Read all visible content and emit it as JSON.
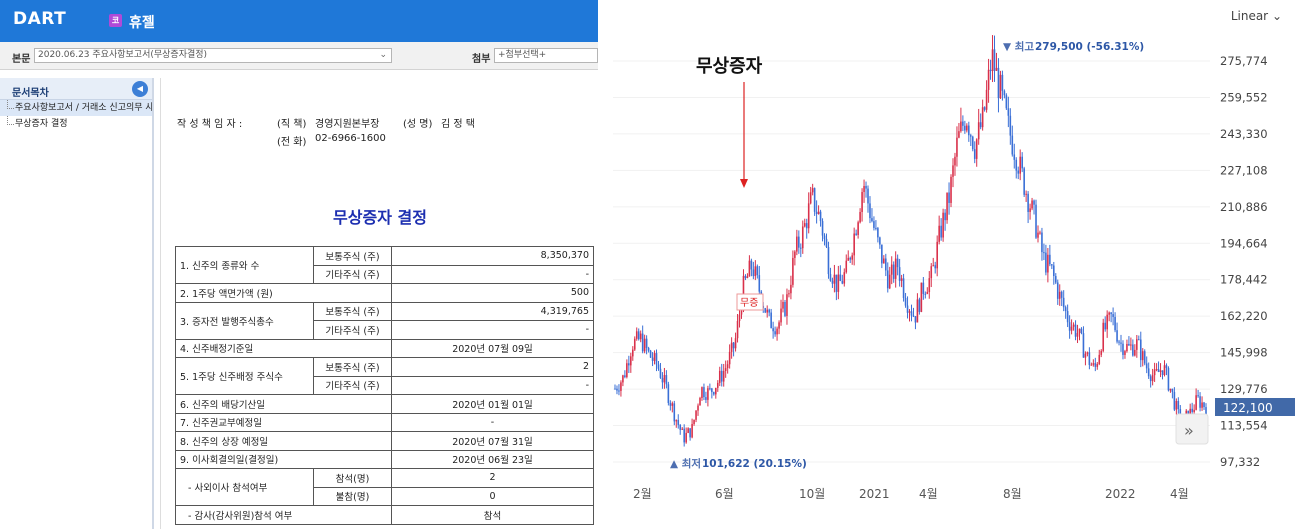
{
  "header": {
    "logo": "DART",
    "company_badge": "코",
    "company_name": "휴젤"
  },
  "toolbar": {
    "body_label": "본문",
    "report_value": "2020.06.23  주요사항보고서(무상증자결정)",
    "attach_label": "첨부",
    "attach_value": "+첨부선택+"
  },
  "toc": {
    "title": "문서목차",
    "items": [
      {
        "label": "주요사항보고서 / 거래소 신고의무 사항"
      },
      {
        "label": "무상증자 결정"
      }
    ]
  },
  "document": {
    "writer_label": "작 성 책 임 자 :",
    "position_label": "(직  책)",
    "position_value": "경영지원본부장",
    "name_label": "(성  명)",
    "name_value": "김 정 택",
    "phone_label": "(전  화)",
    "phone_value": "02-6966-1600",
    "title": "무상증자 결정",
    "rows": {
      "r1_label": "1. 신주의 종류와 수",
      "r1a_type": "보통주식 (주)",
      "r1a_value": "8,350,370",
      "r1b_type": "기타주식 (주)",
      "r1b_value": "-",
      "r2_label": "2. 1주당 액면가액 (원)",
      "r2_value": "500",
      "r3_label": "3. 증자전 발행주식총수",
      "r3a_type": "보통주식 (주)",
      "r3a_value": "4,319,765",
      "r3b_type": "기타주식 (주)",
      "r3b_value": "-",
      "r4_label": "4. 신주배정기준일",
      "r4_value": "2020년 07월 09일",
      "r5_label": "5. 1주당 신주배정 주식수",
      "r5a_type": "보통주식 (주)",
      "r5a_value": "2",
      "r5b_type": "기타주식 (주)",
      "r5b_value": "-",
      "r6_label": "6. 신주의 배당기산일",
      "r6_value": "2020년 01월 01일",
      "r7_label": "7. 신주권교부예정일",
      "r7_value": "-",
      "r8_label": "8. 신주의 상장 예정일",
      "r8_value": "2020년 07월 31일",
      "r9_label": "9. 이사회결의일(결정일)",
      "r9_value": "2020년 06월 23일",
      "r10_label": "- 사외이사 참석여부",
      "r10a_type": "참석(명)",
      "r10a_value": "2",
      "r10b_type": "불참(명)",
      "r10b_value": "0",
      "r11_label": "- 감사(감사위원)참석 여부",
      "r11_value": "참석"
    }
  },
  "chart": {
    "scale_label": "Linear",
    "annotation": "무상증자",
    "marker_label": "무증",
    "high_label": "▼ 최고",
    "high_value": "279,500 (-56.31%)",
    "low_label": "▲ 최저",
    "low_value": "101,622 (20.15%)",
    "current_price": "122,100",
    "nav_icon": "»",
    "colors": {
      "up": "#d9304a",
      "down": "#3a6fd6",
      "price_badge": "#4169a8",
      "arrow": "#d22"
    }
  },
  "chart_data": {
    "type": "candlestick",
    "scale": "linear",
    "y_ticks": [
      "97,332",
      "113,554",
      "129,776",
      "145,998",
      "162,220",
      "178,442",
      "194,664",
      "210,886",
      "227,108",
      "243,330",
      "259,552",
      "275,774"
    ],
    "x_ticks": [
      "2월",
      "6월",
      "10월",
      "2021",
      "4월",
      "8월",
      "2022",
      "4월"
    ],
    "ylim": [
      92000,
      290000
    ],
    "series_close_approx": [
      130000,
      135000,
      150000,
      152000,
      145000,
      140000,
      130000,
      118000,
      108000,
      112000,
      130000,
      128000,
      133000,
      140000,
      150000,
      175000,
      185000,
      172000,
      160000,
      158000,
      168000,
      190000,
      200000,
      215000,
      205000,
      185000,
      175000,
      182000,
      200000,
      222000,
      205000,
      190000,
      178000,
      185000,
      170000,
      162000,
      175000,
      180000,
      200000,
      215000,
      240000,
      252000,
      238000,
      250000,
      278000,
      262000,
      245000,
      232000,
      218000,
      205000,
      188000,
      182000,
      170000,
      160000,
      155000,
      145000,
      138000,
      155000,
      162000,
      150000,
      148000,
      150000,
      140000,
      135000,
      140000,
      128000,
      115000,
      118000,
      125000,
      122100
    ]
  }
}
